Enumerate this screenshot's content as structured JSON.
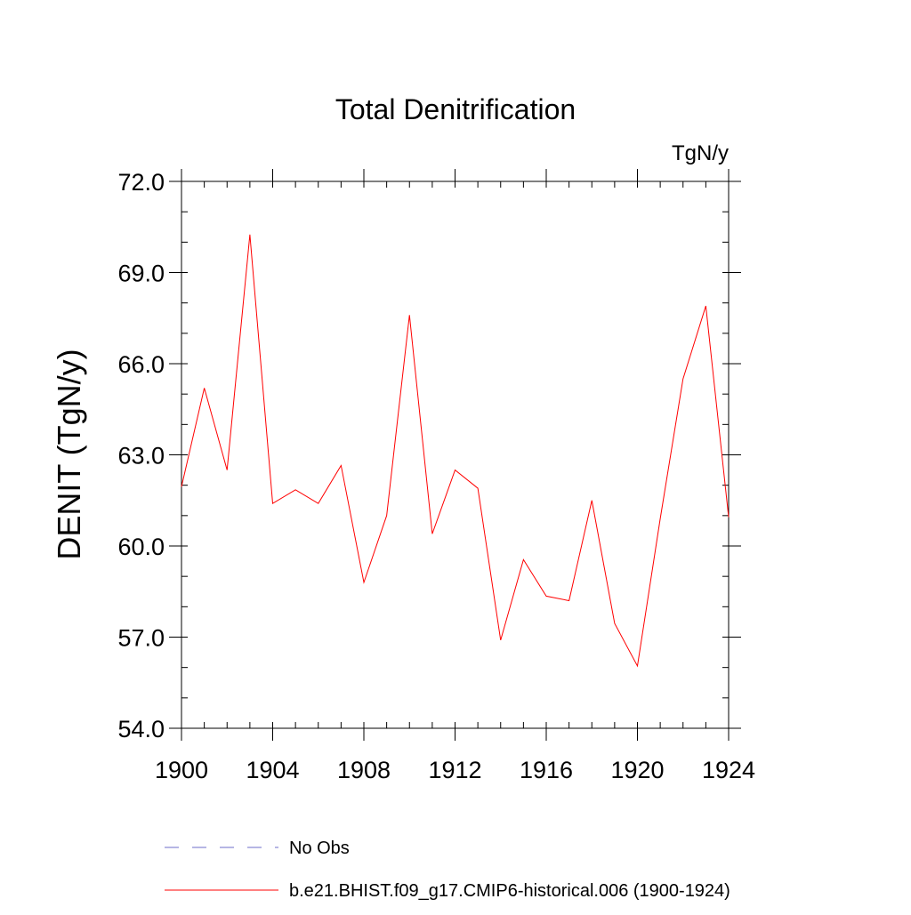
{
  "chart_data": {
    "type": "line",
    "title": "Total Denitrification",
    "units_label": "TgN/y",
    "ylabel": "DENIT  (TgN/y)",
    "xlabel": "",
    "xlim": [
      1900,
      1924
    ],
    "ylim": [
      54.0,
      72.0
    ],
    "x_ticks": [
      1900,
      1904,
      1908,
      1912,
      1916,
      1920,
      1924
    ],
    "x_tick_labels": [
      "1900",
      "1904",
      "1908",
      "1912",
      "1916",
      "1920",
      "1924"
    ],
    "y_ticks": [
      54.0,
      57.0,
      60.0,
      63.0,
      66.0,
      69.0,
      72.0
    ],
    "y_tick_labels": [
      "54.0",
      "57.0",
      "60.0",
      "63.0",
      "66.0",
      "69.0",
      "72.0"
    ],
    "x_minor_step": 1,
    "y_minor_step": 1.0,
    "grid": false,
    "legend_placement": "bottom",
    "series": [
      {
        "name": "b.e21.BHIST.f09_g17.CMIP6-historical.006 (1900-1924)",
        "color": "#ff0000",
        "style": "solid",
        "x": [
          1900,
          1901,
          1902,
          1903,
          1904,
          1905,
          1906,
          1907,
          1908,
          1909,
          1910,
          1911,
          1912,
          1913,
          1914,
          1915,
          1916,
          1917,
          1918,
          1919,
          1920,
          1921,
          1922,
          1923,
          1924
        ],
        "values": [
          61.95,
          65.2,
          62.5,
          70.25,
          61.4,
          61.85,
          61.4,
          62.65,
          58.8,
          61.0,
          67.6,
          60.4,
          62.5,
          61.9,
          56.9,
          59.55,
          58.35,
          58.2,
          61.5,
          57.45,
          56.05,
          60.9,
          65.5,
          67.9,
          60.95
        ]
      }
    ],
    "legend": [
      {
        "label": "No Obs",
        "color": "#6e6ec8",
        "style": "dashed"
      },
      {
        "label": "b.e21.BHIST.f09_g17.CMIP6-historical.006 (1900-1924)",
        "color": "#ff0000",
        "style": "solid"
      }
    ]
  }
}
